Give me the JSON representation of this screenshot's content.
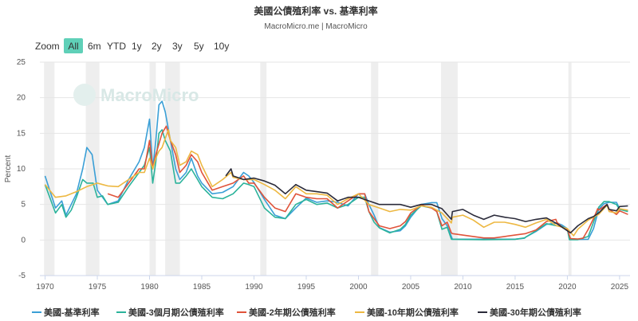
{
  "header": {
    "title": "美國公債殖利率 vs. 基準利率",
    "subtitle": "MacroMicro.me | MacroMicro"
  },
  "zoom": {
    "label": "Zoom",
    "options": [
      "All",
      "6m",
      "YTD",
      "1y",
      "2y",
      "3y",
      "5y",
      "10y"
    ],
    "active": "All"
  },
  "watermark": "MacroMicro",
  "colors": {
    "fed_funds": "#3a9fd6",
    "bill_3m": "#2bb39b",
    "note_2y": "#e0533a",
    "note_10y": "#edb842",
    "bond_30y": "#2b2b3a",
    "recession": "#eeeeee",
    "active_button": "#5fd0b8"
  },
  "chart_data": {
    "type": "line",
    "title": "美國公債殖利率 vs. 基準利率",
    "subtitle": "MacroMicro.me | MacroMicro",
    "ylabel": "Percent",
    "xlabel": "",
    "xlim": [
      1969.5,
      2026
    ],
    "ylim": [
      -5,
      25
    ],
    "x_ticks": [
      1970,
      1975,
      1980,
      1985,
      1990,
      1995,
      2000,
      2005,
      2010,
      2015,
      2020,
      2025
    ],
    "y_ticks": [
      -5,
      0,
      5,
      10,
      15,
      20,
      25
    ],
    "grid": "horizontal",
    "legend": "bottom",
    "recessions": [
      [
        1969.9,
        1970.9
      ],
      [
        1973.9,
        1975.2
      ],
      [
        1980.0,
        1980.6
      ],
      [
        1981.5,
        1982.9
      ],
      [
        1990.6,
        1991.2
      ],
      [
        2001.2,
        2001.9
      ],
      [
        2007.9,
        2009.5
      ],
      [
        2020.1,
        2020.4
      ]
    ],
    "series": [
      {
        "name": "美國-基準利率",
        "key": "fed_funds",
        "x": [
          1970,
          1971,
          1971.6,
          1972,
          1972.5,
          1973,
          1973.6,
          1974,
          1974.5,
          1975,
          1975.5,
          1976,
          1977,
          1978,
          1979,
          1979.5,
          1980.0,
          1980.3,
          1980.6,
          1980.9,
          1981.2,
          1981.5,
          1982,
          1982.5,
          1982.9,
          1983.5,
          1984,
          1984.6,
          1985,
          1986,
          1987,
          1988,
          1989,
          1989.5,
          1990,
          1991,
          1992,
          1993,
          1994,
          1995,
          1996,
          1997,
          1998,
          1999,
          2000,
          2000.6,
          2001,
          2001.5,
          2002,
          2003,
          2004,
          2004.5,
          2005,
          2006,
          2007,
          2007.5,
          2008,
          2008.5,
          2008.9,
          2009,
          2012,
          2015,
          2015.9,
          2016,
          2017,
          2018,
          2019,
          2019.5,
          2020,
          2020.2,
          2021,
          2022,
          2022.5,
          2023,
          2023.5,
          2024,
          2024.7,
          2025,
          2025.8
        ],
        "values": [
          9.0,
          4.5,
          5.5,
          3.5,
          5.0,
          6.5,
          10.0,
          13.0,
          12.0,
          7.0,
          6.0,
          5.0,
          5.5,
          8.5,
          11.0,
          13.0,
          17.0,
          10.0,
          14.0,
          19.0,
          19.5,
          18.0,
          14.0,
          10.0,
          8.5,
          9.5,
          11.5,
          9.0,
          8.0,
          6.5,
          6.7,
          7.5,
          9.5,
          9.0,
          8.1,
          5.7,
          3.5,
          3.0,
          4.5,
          5.9,
          5.3,
          5.5,
          5.3,
          4.8,
          6.5,
          6.5,
          5.0,
          3.5,
          1.75,
          1.1,
          1.3,
          2.0,
          3.2,
          5.0,
          5.25,
          5.25,
          3.0,
          2.0,
          0.5,
          0.12,
          0.12,
          0.12,
          0.25,
          0.4,
          1.2,
          2.2,
          2.4,
          2.1,
          1.6,
          0.08,
          0.08,
          0.1,
          1.6,
          4.3,
          5.1,
          5.3,
          5.3,
          4.4,
          4.1
        ]
      },
      {
        "name": "美國-3個月期公債殖利率",
        "key": "bill_3m",
        "x": [
          1970,
          1971,
          1971.6,
          1972,
          1972.5,
          1973,
          1973.6,
          1974,
          1974.6,
          1975,
          1975.5,
          1976,
          1977,
          1978,
          1979,
          1979.5,
          1980.0,
          1980.3,
          1980.6,
          1980.9,
          1981.2,
          1981.5,
          1982,
          1982.5,
          1982.9,
          1983.5,
          1984,
          1984.6,
          1985,
          1986,
          1987,
          1988,
          1989,
          1989.5,
          1990,
          1991,
          1992,
          1993,
          1994,
          1995,
          1996,
          1997,
          1998,
          1999,
          2000,
          2000.6,
          2001,
          2001.5,
          2002,
          2003,
          2004,
          2004.5,
          2005,
          2006,
          2007,
          2007.5,
          2008,
          2008.5,
          2008.9,
          2009,
          2012,
          2015,
          2015.9,
          2016,
          2017,
          2018,
          2019,
          2019.5,
          2020,
          2020.2,
          2021,
          2022,
          2022.5,
          2023,
          2023.5,
          2024,
          2024.7,
          2025,
          2025.8
        ],
        "values": [
          7.8,
          3.8,
          5.0,
          3.2,
          4.2,
          6.0,
          8.5,
          8.0,
          8.0,
          6.0,
          6.2,
          5.0,
          5.3,
          7.5,
          9.5,
          10.5,
          13.0,
          8.0,
          11.0,
          15.0,
          15.5,
          14.0,
          12.5,
          8.0,
          8.0,
          9.0,
          10.0,
          8.5,
          7.5,
          6.0,
          5.8,
          6.5,
          8.0,
          7.8,
          7.5,
          4.5,
          3.2,
          3.0,
          5.0,
          5.7,
          5.0,
          5.2,
          4.5,
          5.0,
          6.0,
          6.0,
          4.0,
          2.5,
          1.7,
          1.0,
          1.5,
          2.2,
          3.5,
          4.8,
          4.5,
          4.0,
          1.5,
          1.8,
          0.1,
          0.1,
          0.05,
          0.1,
          0.3,
          0.4,
          1.3,
          2.3,
          2.0,
          1.9,
          1.5,
          0.05,
          0.05,
          0.5,
          2.5,
          4.6,
          5.4,
          5.4,
          5.0,
          4.3,
          4.0
        ]
      },
      {
        "name": "美國-2年期公債殖利率",
        "key": "note_2y",
        "x": [
          1976,
          1977,
          1978,
          1979,
          1979.5,
          1980.0,
          1980.3,
          1980.6,
          1980.9,
          1981.2,
          1981.6,
          1982,
          1982.5,
          1982.9,
          1983.5,
          1984,
          1984.6,
          1985,
          1986,
          1987,
          1988,
          1989,
          1989.5,
          1990,
          1991,
          1992,
          1993,
          1994,
          1995,
          1996,
          1997,
          1998,
          1999,
          2000,
          2000.6,
          2001,
          2001.5,
          2002,
          2003,
          2004,
          2004.5,
          2005,
          2006,
          2007,
          2007.5,
          2008,
          2008.5,
          2008.9,
          2009,
          2011,
          2012,
          2013,
          2014,
          2015,
          2016,
          2017,
          2018,
          2018.9,
          2019,
          2019.5,
          2020,
          2020.3,
          2021,
          2021.5,
          2022,
          2022.5,
          2022.9,
          2023,
          2023.8,
          2024,
          2024.7,
          2025,
          2025.8
        ],
        "values": [
          6.5,
          6.0,
          8.0,
          10.0,
          10.0,
          14.0,
          10.0,
          12.0,
          13.5,
          15.0,
          16.0,
          14.0,
          12.0,
          9.5,
          10.5,
          12.0,
          11.0,
          9.5,
          7.0,
          7.5,
          8.0,
          9.0,
          8.0,
          8.0,
          6.0,
          4.5,
          4.0,
          6.5,
          6.0,
          5.8,
          5.8,
          4.5,
          5.5,
          6.5,
          6.5,
          4.0,
          3.0,
          2.0,
          1.6,
          2.0,
          2.6,
          3.8,
          4.9,
          4.5,
          4.0,
          2.0,
          2.5,
          1.0,
          0.9,
          0.5,
          0.3,
          0.3,
          0.5,
          0.7,
          0.9,
          1.4,
          2.6,
          2.9,
          2.5,
          1.8,
          1.5,
          0.2,
          0.15,
          0.25,
          1.5,
          3.0,
          4.4,
          4.2,
          5.0,
          4.3,
          3.6,
          4.1,
          3.6
        ]
      },
      {
        "name": "美國-10年期公債殖利率",
        "key": "note_10y",
        "x": [
          1970,
          1971,
          1972,
          1973,
          1974,
          1975,
          1976,
          1977,
          1978,
          1979,
          1979.5,
          1980.0,
          1980.3,
          1980.6,
          1980.9,
          1981.2,
          1981.8,
          1982,
          1982.5,
          1982.9,
          1983.5,
          1984,
          1984.6,
          1985,
          1986,
          1987,
          1987.8,
          1988,
          1989,
          1990,
          1991,
          1992,
          1993,
          1994,
          1995,
          1996,
          1997,
          1998,
          1999,
          2000,
          2001,
          2002,
          2003,
          2004,
          2005,
          2006,
          2007,
          2008,
          2008.9,
          2009,
          2010,
          2011,
          2012,
          2013,
          2014,
          2015,
          2016,
          2017,
          2018,
          2019,
          2020,
          2020.6,
          2021,
          2022,
          2022.5,
          2023,
          2023.8,
          2024,
          2024.7,
          2025,
          2025.8
        ],
        "values": [
          7.8,
          6.0,
          6.2,
          6.8,
          7.5,
          8.0,
          7.6,
          7.5,
          8.5,
          9.5,
          9.5,
          11.5,
          10.0,
          11.5,
          12.5,
          13.0,
          15.5,
          14.0,
          13.0,
          10.5,
          11.0,
          12.5,
          12.0,
          10.5,
          7.5,
          8.5,
          9.5,
          8.8,
          8.5,
          8.5,
          7.8,
          7.0,
          5.8,
          7.5,
          6.5,
          6.5,
          6.3,
          5.0,
          5.8,
          6.5,
          5.0,
          4.5,
          4.0,
          4.3,
          4.2,
          4.8,
          4.6,
          3.8,
          2.4,
          3.2,
          3.5,
          2.8,
          1.8,
          2.5,
          2.5,
          2.2,
          1.8,
          2.4,
          2.9,
          2.0,
          1.6,
          0.6,
          1.5,
          2.8,
          3.2,
          3.6,
          4.9,
          4.0,
          3.8,
          4.4,
          4.2
        ]
      },
      {
        "name": "美國-30年期公債殖利率",
        "key": "bond_30y",
        "x": [
          1987.3,
          1987.8,
          1988,
          1989,
          1990,
          1991,
          1992,
          1993,
          1994,
          1995,
          1996,
          1997,
          1998,
          1999,
          2000,
          2001,
          2002,
          2003,
          2004,
          2005,
          2006,
          2007,
          2008,
          2008.9,
          2009,
          2010,
          2011,
          2012,
          2013,
          2014,
          2015,
          2016,
          2017,
          2018,
          2019,
          2020,
          2020.3,
          2021,
          2022,
          2022.5,
          2023,
          2023.8,
          2024,
          2024.7,
          2025,
          2025.8
        ],
        "values": [
          9.0,
          10.0,
          9.0,
          8.5,
          8.7,
          8.3,
          7.7,
          6.5,
          7.8,
          7.0,
          6.8,
          6.6,
          5.5,
          6.0,
          6.0,
          5.5,
          5.0,
          5.0,
          5.0,
          4.6,
          5.0,
          5.0,
          4.4,
          2.9,
          4.0,
          4.3,
          3.5,
          2.9,
          3.5,
          3.2,
          3.0,
          2.6,
          2.9,
          3.1,
          2.3,
          1.3,
          1.0,
          2.0,
          3.0,
          3.3,
          3.8,
          5.0,
          4.3,
          4.1,
          4.7,
          4.8
        ]
      }
    ]
  }
}
